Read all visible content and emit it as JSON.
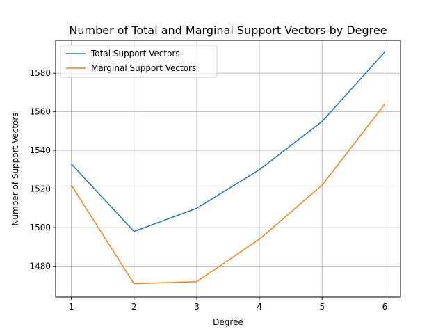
{
  "chart_data": {
    "type": "line",
    "title": "Number of Total and Marginal Support Vectors by Degree",
    "xlabel": "Degree",
    "ylabel": "Number of Support Vectors",
    "x": [
      1,
      2,
      3,
      4,
      5,
      6
    ],
    "x_ticks": [
      "1",
      "2",
      "3",
      "4",
      "5",
      "6"
    ],
    "y_ticks": [
      1480,
      1500,
      1520,
      1540,
      1560,
      1580
    ],
    "xlim": [
      0.75,
      6.25
    ],
    "ylim": [
      1464.0,
      1597.0
    ],
    "grid": true,
    "legend_position": "top-left",
    "series": [
      {
        "name": "Total Support Vectors",
        "color": "#1f77b4",
        "values": [
          1533,
          1498,
          1510,
          1530,
          1555,
          1591
        ]
      },
      {
        "name": "Marginal Support Vectors",
        "color": "#ff7f0e",
        "values": [
          1522,
          1471,
          1472,
          1494,
          1522,
          1564
        ]
      }
    ]
  }
}
